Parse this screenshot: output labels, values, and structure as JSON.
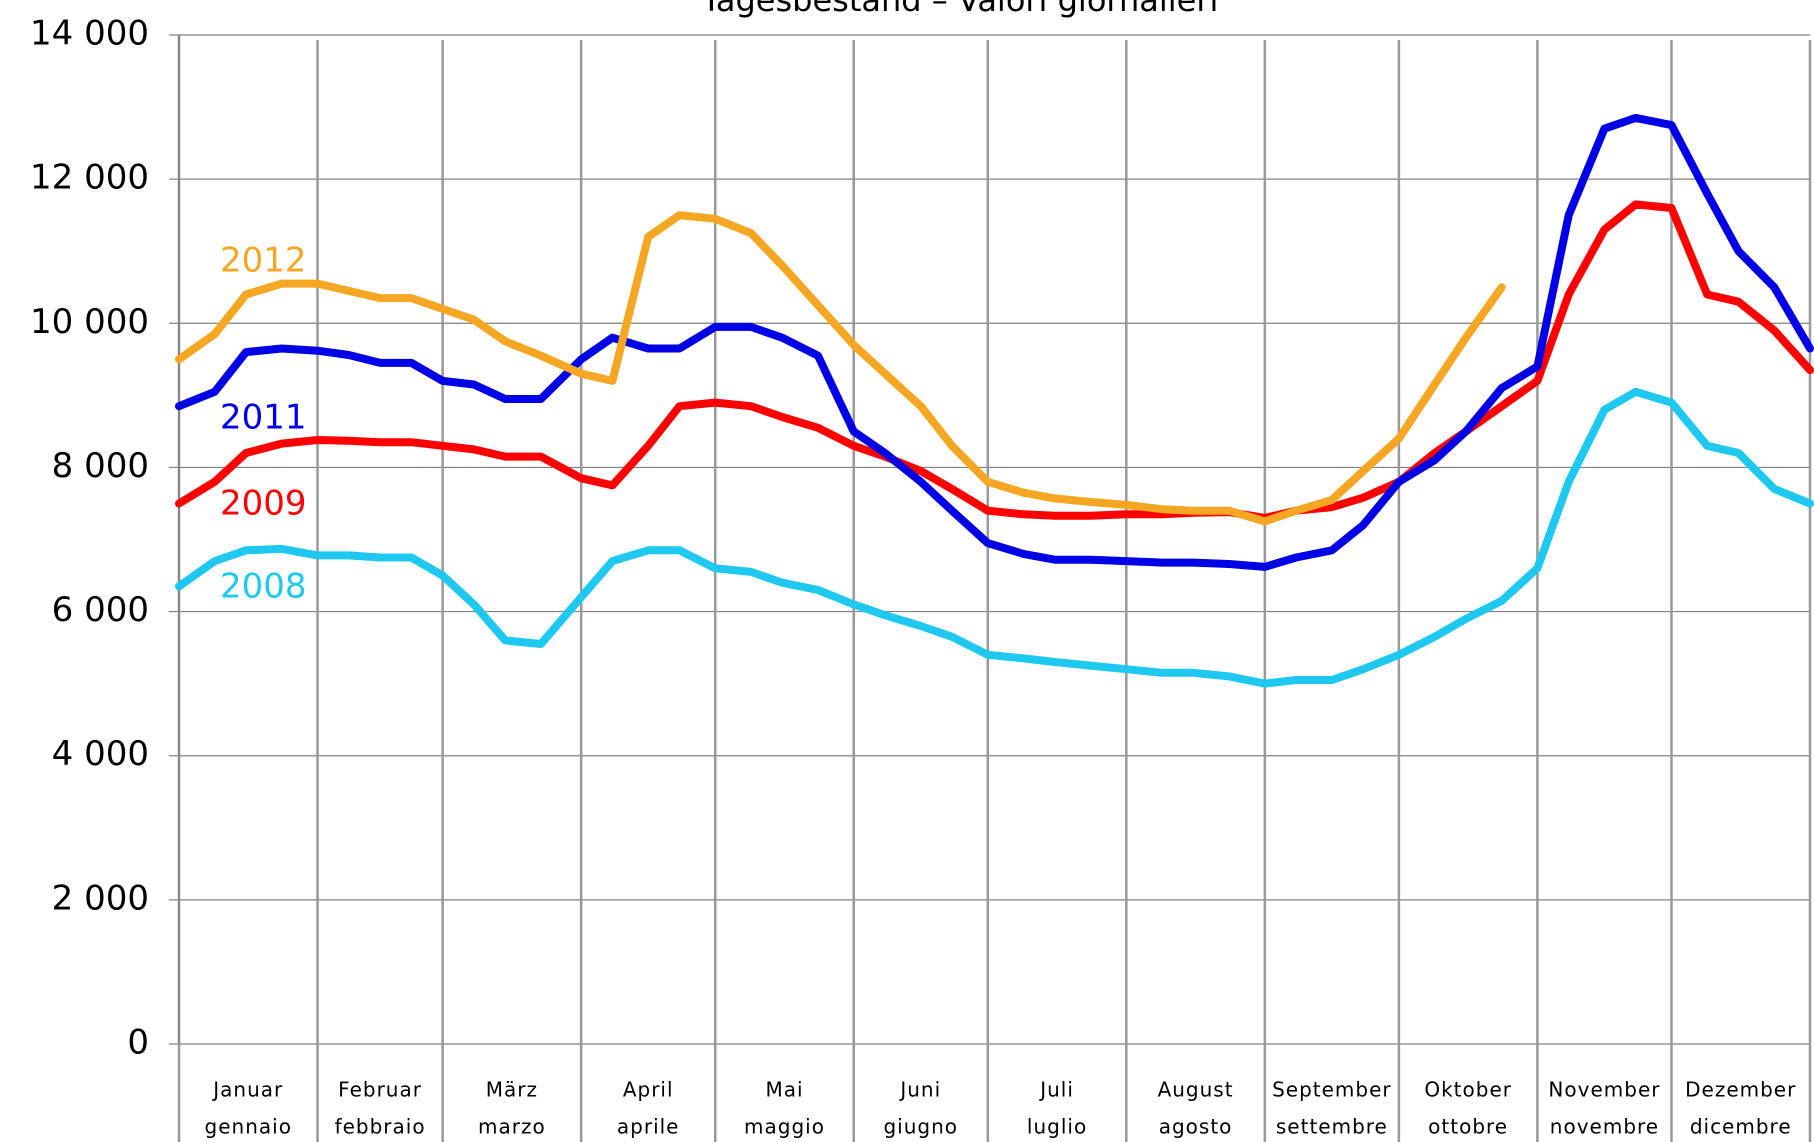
{
  "chart_data": {
    "type": "line",
    "title": "Tagesbestand – Valori giornalieri",
    "categories": [
      "Januar",
      "Februar",
      "März",
      "April",
      "Mai",
      "Juni",
      "Juli",
      "August",
      "September",
      "Oktober",
      "November",
      "Dezember"
    ],
    "categories_it": [
      "gennaio",
      "febbraio",
      "marzo",
      "aprile",
      "maggio",
      "giugno",
      "luglio",
      "agosto",
      "settembre",
      "ottobre",
      "novembre",
      "dicembre"
    ],
    "x": [
      0,
      8,
      15,
      23,
      31,
      38,
      45,
      52,
      59,
      66,
      73,
      81,
      90,
      97,
      105,
      112,
      120,
      128,
      135,
      143,
      151,
      158,
      166,
      173,
      181,
      189,
      196,
      204,
      212,
      220,
      227,
      235,
      243,
      250,
      258,
      265,
      273,
      281,
      288,
      296,
      304,
      311,
      319,
      326,
      334,
      342,
      349,
      357,
      365
    ],
    "xlim": [
      0,
      365
    ],
    "xticks": [
      0,
      31,
      59,
      90,
      120,
      151,
      181,
      212,
      243,
      273,
      304,
      334,
      365
    ],
    "ylim": [
      0,
      14000
    ],
    "yticks": [
      {
        "value": 0,
        "label": "0"
      },
      {
        "value": 2000,
        "label": "2 000"
      },
      {
        "value": 4000,
        "label": "4 000"
      },
      {
        "value": 6000,
        "label": "6 000"
      },
      {
        "value": 8000,
        "label": "8 000"
      },
      {
        "value": 10000,
        "label": "10 000"
      },
      {
        "value": 12000,
        "label": "12 000"
      },
      {
        "value": 14000,
        "label": "14 000"
      }
    ],
    "grid": true,
    "series": [
      {
        "name": "2008",
        "color": "#1ec8f0",
        "values": [
          6350,
          6700,
          6850,
          6870,
          6780,
          6780,
          6750,
          6750,
          6500,
          6100,
          5600,
          5550,
          6200,
          6700,
          6850,
          6850,
          6600,
          6550,
          6400,
          6300,
          6100,
          5950,
          5800,
          5650,
          5400,
          5350,
          5300,
          5250,
          5200,
          5150,
          5150,
          5100,
          5000,
          5050,
          5050,
          5200,
          5400,
          5650,
          5900,
          6150,
          6600,
          7800,
          8800,
          9050,
          8900,
          8300,
          8200,
          7700,
          7500
        ]
      },
      {
        "name": "2009",
        "color": "#ff0000",
        "values": [
          7500,
          7800,
          8200,
          8330,
          8380,
          8370,
          8350,
          8350,
          8300,
          8250,
          8150,
          8150,
          7850,
          7750,
          8300,
          8850,
          8900,
          8850,
          8700,
          8550,
          8300,
          8150,
          7950,
          7700,
          7400,
          7350,
          7330,
          7330,
          7350,
          7350,
          7370,
          7380,
          7300,
          7400,
          7450,
          7580,
          7800,
          8200,
          8500,
          8850,
          9200,
          10400,
          11300,
          11650,
          11600,
          10400,
          10300,
          9900,
          9350
        ]
      },
      {
        "name": "2011",
        "color": "#0000e6",
        "values": [
          8850,
          9050,
          9600,
          9650,
          9620,
          9560,
          9450,
          9450,
          9200,
          9150,
          8950,
          8950,
          9500,
          9800,
          9650,
          9650,
          9950,
          9950,
          9800,
          9550,
          8500,
          8200,
          7800,
          7400,
          6950,
          6800,
          6720,
          6720,
          6700,
          6680,
          6680,
          6660,
          6620,
          6750,
          6850,
          7200,
          7800,
          8100,
          8500,
          9100,
          9400,
          11500,
          12700,
          12850,
          12750,
          11800,
          11000,
          10500,
          9650
        ]
      },
      {
        "name": "2012",
        "color": "#f5a623",
        "values": [
          9500,
          9850,
          10400,
          10550,
          10550,
          10450,
          10350,
          10350,
          10200,
          10050,
          9750,
          9550,
          9300,
          9200,
          11200,
          11500,
          11450,
          11250,
          10800,
          10250,
          9700,
          9300,
          8850,
          8300,
          7800,
          7650,
          7570,
          7520,
          7480,
          7420,
          7400,
          7400,
          7250,
          7400,
          7550,
          7950,
          8400,
          9150,
          9800,
          10500,
          null,
          null,
          null,
          null,
          null,
          null,
          null,
          null,
          null
        ]
      }
    ]
  }
}
